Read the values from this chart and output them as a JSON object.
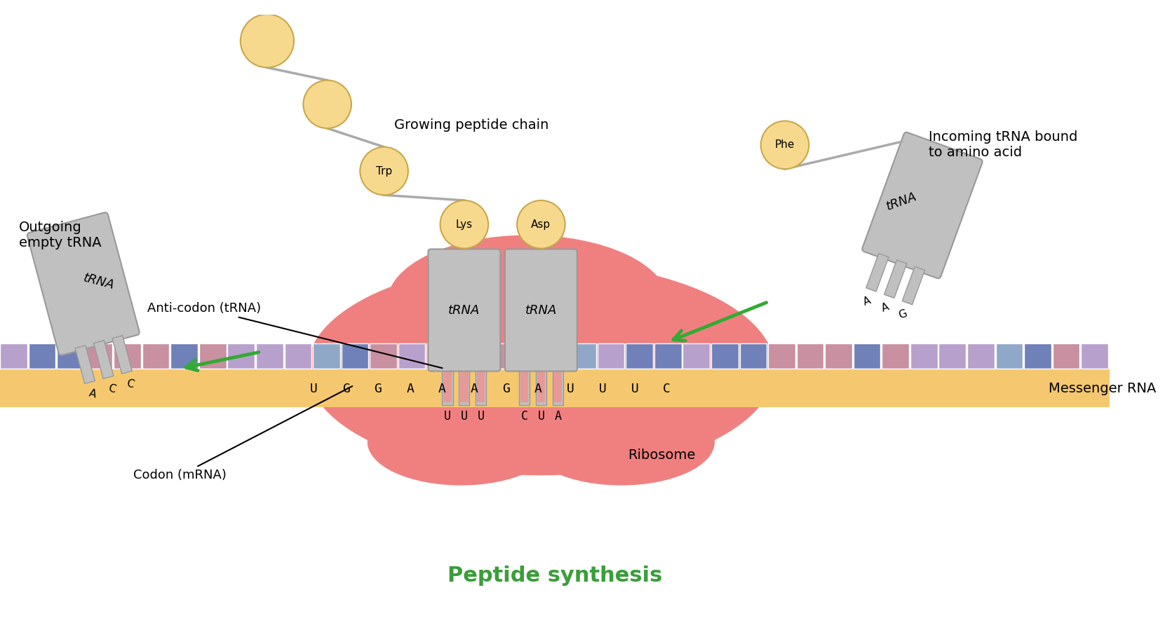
{
  "background_color": "#ffffff",
  "title": "Peptide synthesis",
  "title_color": "#3a9e3a",
  "title_fontsize": 22,
  "title_fontweight": "bold",
  "ribosome_color": "#f08080",
  "mrna_band_color": "#f5c870",
  "trna_body_color": "#c0c0c0",
  "peptide_color": "#f7d98e",
  "peptide_outline": "#c8a84b",
  "mrna_codons_visible": [
    "U",
    "G",
    "G",
    "A",
    "A",
    "A",
    "G",
    "A",
    "U",
    "U",
    "U",
    "C"
  ],
  "anticodon_left": [
    "U",
    "U",
    "U"
  ],
  "anticodon_right": [
    "C",
    "U",
    "A"
  ],
  "left_trna_anticodon": [
    "A",
    "C",
    "C"
  ],
  "right_trna_anticodon": [
    "A",
    "A",
    "G"
  ],
  "nuc_colors": {
    "U": "#b8a0cc",
    "G": "#7080b8",
    "A": "#c890a0",
    "C": "#90a8c8",
    "X": "#e8c8a0"
  },
  "nuc_sequence": [
    "U",
    "G",
    "G",
    "A",
    "A",
    "A",
    "G",
    "A",
    "U",
    "U",
    "U",
    "C",
    "G",
    "A",
    "U",
    "U",
    "G",
    "A",
    "A",
    "A",
    "C",
    "U",
    "G",
    "G",
    "U",
    "G",
    "G",
    "A",
    "A",
    "A",
    "G",
    "A",
    "U",
    "U",
    "U",
    "C",
    "G",
    "A",
    "U"
  ]
}
